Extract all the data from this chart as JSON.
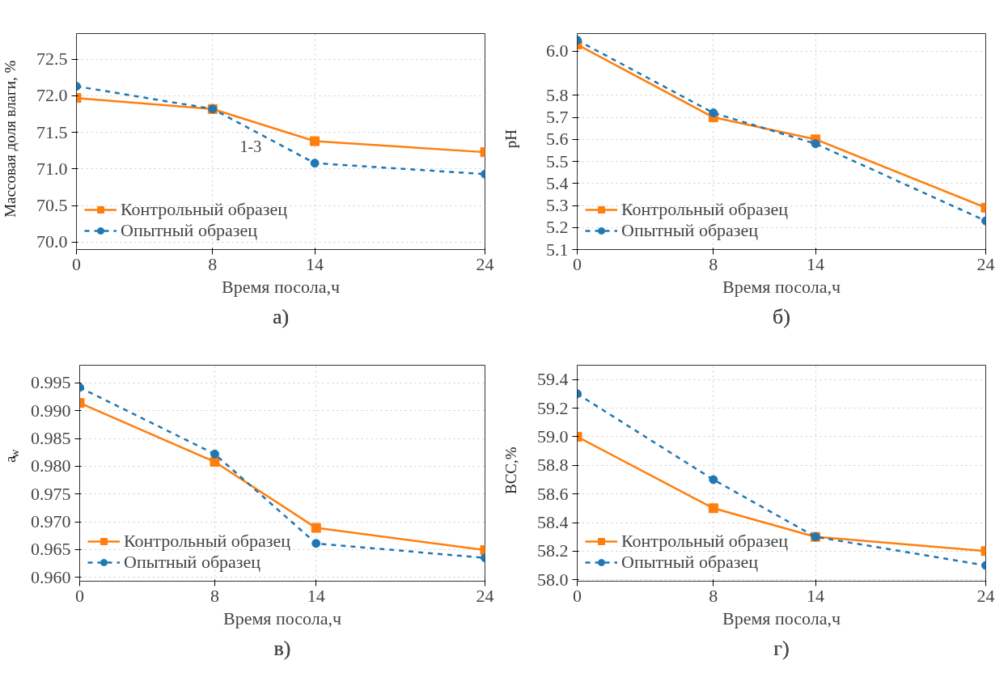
{
  "chart_data": [
    {
      "type": "line",
      "title": "а)",
      "xlabel": "Время посола,ч",
      "ylabel": "Массовая доля влаги, %",
      "x": [
        0,
        8,
        14,
        24
      ],
      "xlim": [
        0,
        24
      ],
      "xticks": [
        0,
        8,
        14,
        24
      ],
      "ylim": [
        69.9,
        72.85
      ],
      "yticks": [
        {
          "value": 70,
          "label": "70.0"
        },
        70.5,
        {
          "value": 71,
          "label": "71.0"
        },
        71.5,
        {
          "value": 72,
          "label": "72.0"
        },
        72.5
      ],
      "grid": true,
      "legend": "bottom left",
      "annotations": [
        "1-3"
      ],
      "series": [
        {
          "name": "Контрольный образец",
          "color": "#ff7f0e",
          "marker": "square",
          "line_style": "solid",
          "values": [
            71.97,
            71.82,
            71.38,
            71.23
          ]
        },
        {
          "name": "Опытный образец",
          "color": "#1f77b4",
          "marker": "circle",
          "line_style": "dashed",
          "values": [
            72.13,
            71.82,
            71.08,
            70.93
          ]
        }
      ]
    },
    {
      "type": "line",
      "title": "б)",
      "xlabel": "Время посола,ч",
      "ylabel": "pH",
      "x": [
        0,
        8,
        14,
        24
      ],
      "xlim": [
        0,
        24
      ],
      "xticks": [
        0,
        8,
        14,
        24
      ],
      "ylim": [
        5.1,
        6.08
      ],
      "yticks": [
        5.1,
        5.2,
        5.3,
        5.4,
        5.5,
        5.6,
        5.7,
        5.8,
        {
          "value": 6,
          "label": "6.0"
        }
      ],
      "grid": true,
      "legend": "bottom left",
      "series": [
        {
          "name": "Контрольный образец",
          "color": "#ff7f0e",
          "marker": "square",
          "line_style": "solid",
          "values": [
            6.03,
            5.7,
            5.6,
            5.29
          ]
        },
        {
          "name": "Опытный образец",
          "color": "#1f77b4",
          "marker": "circle",
          "line_style": "dashed",
          "values": [
            6.05,
            5.72,
            5.58,
            5.23
          ]
        }
      ]
    },
    {
      "type": "line",
      "title": "в)",
      "xlabel": "Время посола,ч",
      "ylabel": "a$_{w}$",
      "x": [
        0,
        8,
        14,
        24
      ],
      "xlim": [
        0,
        24
      ],
      "xticks": [
        0,
        8,
        14,
        24
      ],
      "ylim": [
        0.9593,
        0.9982
      ],
      "yticks": [
        {
          "value": 0.96,
          "label": "0.960"
        },
        0.965,
        {
          "value": 0.97,
          "label": "0.970"
        },
        0.975,
        {
          "value": 0.98,
          "label": "0.980"
        },
        0.985,
        {
          "value": 0.99,
          "label": "0.990"
        },
        0.995
      ],
      "grid": true,
      "legend": "bottom left",
      "series": [
        {
          "name": "Контрольный образец",
          "color": "#ff7f0e",
          "marker": "square",
          "line_style": "solid",
          "values": [
            0.9914,
            0.9808,
            0.9689,
            0.9649
          ]
        },
        {
          "name": "Опытный образец",
          "color": "#1f77b4",
          "marker": "circle",
          "line_style": "dashed",
          "values": [
            0.9942,
            0.9822,
            0.9661,
            0.9635
          ]
        }
      ]
    },
    {
      "type": "line",
      "title": "г)",
      "xlabel": "Время посола,ч",
      "ylabel": "ВСС,%",
      "x": [
        0,
        8,
        14,
        24
      ],
      "xlim": [
        0,
        24
      ],
      "xticks": [
        0,
        8,
        14,
        24
      ],
      "ylim": [
        57.99,
        59.5
      ],
      "yticks": [
        {
          "value": 58.0,
          "label": "58.0"
        },
        58.2,
        58.4,
        58.6,
        58.8,
        {
          "value": 59.0,
          "label": "59.0"
        },
        59.2,
        59.4
      ],
      "grid": true,
      "legend": "bottom left",
      "series": [
        {
          "name": "Контрольный образец",
          "color": "#ff7f0e",
          "marker": "square",
          "line_style": "solid",
          "values": [
            59.0,
            58.5,
            58.3,
            58.2
          ]
        },
        {
          "name": "Опытный образец",
          "color": "#1f77b4",
          "marker": "circle",
          "line_style": "dashed",
          "values": [
            59.3,
            58.7,
            58.3,
            58.1
          ]
        }
      ]
    }
  ]
}
